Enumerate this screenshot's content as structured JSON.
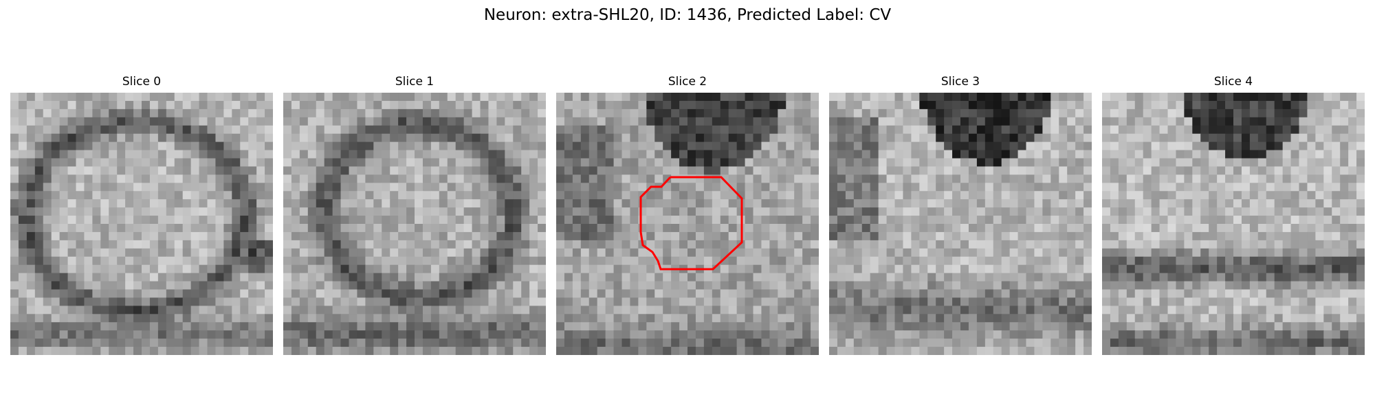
{
  "figure": {
    "title": "Neuron: extra-SHL20, ID: 1436, Predicted Label: CV"
  },
  "slices": [
    {
      "label": "Slice 0",
      "has_outline": false
    },
    {
      "label": "Slice 1",
      "has_outline": false
    },
    {
      "label": "Slice 2",
      "has_outline": true
    },
    {
      "label": "Slice 3",
      "has_outline": false
    },
    {
      "label": "Slice 4",
      "has_outline": false
    }
  ],
  "colors": {
    "outline": "#ff0000",
    "colormap": "gray"
  }
}
